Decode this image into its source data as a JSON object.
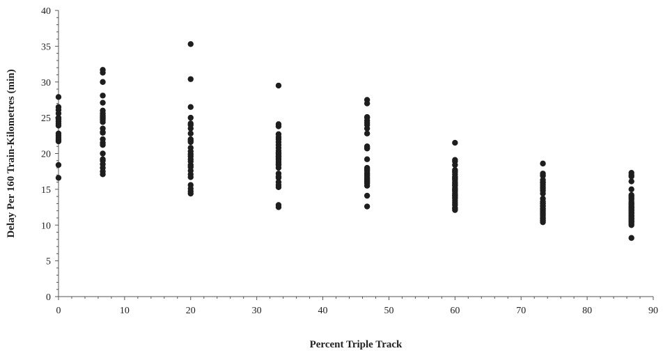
{
  "chart_data": {
    "type": "scatter",
    "title": "",
    "xlabel": "Percent Triple Track",
    "ylabel": "Delay Per 160 Train-Kilometres (min)",
    "xlim": [
      0,
      90
    ],
    "ylim": [
      0,
      40
    ],
    "x_ticks": [
      0,
      10,
      20,
      30,
      40,
      50,
      60,
      70,
      80,
      90
    ],
    "y_ticks": [
      0,
      5,
      10,
      15,
      20,
      25,
      30,
      35,
      40
    ],
    "grid": false,
    "legend": "none",
    "point_color": "#1e1e1e",
    "series": [
      {
        "x": [
          0,
          0,
          0,
          0,
          0,
          0,
          0,
          0,
          0,
          0,
          0,
          0,
          0,
          0,
          0,
          0,
          6.7,
          6.7,
          6.7,
          6.7,
          6.7,
          6.7,
          6.7,
          6.7,
          6.7,
          6.7,
          6.7,
          6.7,
          6.7,
          6.7,
          6.7,
          6.7,
          6.7,
          6.7,
          6.7,
          6.7,
          6.7,
          6.7,
          6.7,
          6.7,
          6.7,
          20,
          20,
          20,
          20,
          20,
          20,
          20,
          20,
          20,
          20,
          20,
          20,
          20,
          20,
          20,
          20,
          20,
          20,
          20,
          20,
          20,
          20,
          20,
          20,
          20,
          20,
          33.3,
          33.3,
          33.3,
          33.3,
          33.3,
          33.3,
          33.3,
          33.3,
          33.3,
          33.3,
          33.3,
          33.3,
          33.3,
          33.3,
          33.3,
          33.3,
          33.3,
          33.3,
          33.3,
          33.3,
          33.3,
          33.3,
          33.3,
          33.3,
          33.3,
          33.3,
          33.3,
          33.3,
          33.3,
          46.7,
          46.7,
          46.7,
          46.7,
          46.7,
          46.7,
          46.7,
          46.7,
          46.7,
          46.7,
          46.7,
          46.7,
          46.7,
          46.7,
          46.7,
          46.7,
          46.7,
          46.7,
          46.7,
          46.7,
          46.7,
          46.7,
          46.7,
          46.7,
          46.7,
          46.7,
          46.7,
          60,
          60,
          60,
          60,
          60,
          60,
          60,
          60,
          60,
          60,
          60,
          60,
          60,
          60,
          60,
          60,
          60,
          60,
          60,
          60,
          60,
          60,
          60,
          60,
          60,
          60,
          60,
          60,
          60,
          60,
          60,
          73.3,
          73.3,
          73.3,
          73.3,
          73.3,
          73.3,
          73.3,
          73.3,
          73.3,
          73.3,
          73.3,
          73.3,
          73.3,
          73.3,
          73.3,
          73.3,
          73.3,
          73.3,
          73.3,
          73.3,
          73.3,
          73.3,
          73.3,
          73.3,
          73.3,
          73.3,
          73.3,
          73.3,
          73.3,
          73.3,
          86.7,
          86.7,
          86.7,
          86.7,
          86.7,
          86.7,
          86.7,
          86.7,
          86.7,
          86.7,
          86.7,
          86.7,
          86.7,
          86.7,
          86.7,
          86.7,
          86.7,
          86.7,
          86.7,
          86.7,
          86.7,
          86.7,
          86.7,
          86.7,
          86.7,
          86.7,
          86.7,
          86.7,
          86.7,
          86.7,
          86.7,
          86.7,
          86.7,
          86.7
        ],
        "y": [
          27.9,
          26.1,
          25.6,
          25.0,
          24.8,
          24.2,
          23.9,
          22.8,
          22.5,
          22.2,
          21.9,
          21.7,
          18.4,
          16.6,
          24.5,
          26.5,
          31.7,
          31.3,
          30.0,
          28.1,
          27.1,
          26.0,
          25.6,
          25.1,
          24.7,
          24.4,
          23.5,
          23.0,
          22.0,
          21.5,
          21.2,
          20.0,
          19.2,
          19.0,
          18.5,
          18.0,
          17.5,
          17.1,
          25.3,
          24.9,
          22.9,
          35.3,
          30.4,
          26.5,
          25.0,
          24.2,
          24.0,
          23.5,
          22.8,
          22.0,
          21.8,
          20.8,
          20.3,
          19.9,
          19.6,
          19.2,
          18.9,
          18.4,
          18.1,
          17.6,
          17.1,
          16.7,
          15.6,
          15.1,
          14.7,
          14.4,
          21.6,
          29.5,
          24.1,
          23.8,
          22.7,
          22.0,
          21.6,
          21.2,
          20.8,
          20.4,
          20.1,
          19.8,
          19.5,
          19.3,
          19.1,
          18.8,
          18.4,
          18.0,
          17.2,
          16.6,
          16.0,
          15.6,
          15.3,
          12.8,
          12.5,
          22.3,
          20.0,
          19.6,
          18.5,
          16.8,
          27.5,
          27.0,
          25.1,
          24.6,
          24.0,
          23.5,
          22.8,
          21.0,
          20.8,
          19.2,
          18.0,
          17.6,
          17.3,
          17.1,
          16.9,
          16.6,
          16.2,
          15.8,
          15.5,
          14.1,
          12.6,
          25.0,
          24.3,
          20.7,
          17.8,
          16.4,
          16.0,
          21.5,
          19.1,
          18.9,
          18.4,
          17.7,
          17.4,
          17.1,
          16.8,
          16.6,
          16.3,
          16.0,
          15.8,
          15.5,
          15.2,
          15.0,
          14.7,
          14.4,
          14.1,
          13.7,
          13.4,
          13.1,
          12.8,
          12.4,
          12.1,
          17.5,
          16.5,
          15.6,
          14.9,
          14.2,
          13.9,
          12.3,
          18.6,
          17.2,
          16.9,
          16.3,
          16.0,
          15.6,
          15.3,
          14.8,
          14.4,
          13.7,
          13.3,
          13.0,
          12.6,
          12.3,
          12.0,
          11.8,
          11.6,
          11.3,
          11.0,
          10.7,
          10.4,
          17.0,
          15.9,
          15.1,
          13.1,
          12.7,
          12.2,
          11.5,
          10.9,
          10.6,
          17.3,
          17.0,
          16.1,
          15.0,
          14.2,
          14.0,
          13.6,
          13.3,
          13.0,
          12.8,
          12.6,
          12.4,
          12.2,
          12.0,
          11.8,
          11.6,
          11.4,
          11.2,
          11.0,
          10.8,
          10.6,
          10.4,
          10.2,
          10.0,
          8.2,
          13.8,
          13.1,
          12.5,
          12.1,
          11.7,
          11.3,
          10.9,
          10.5,
          16.8
        ]
      }
    ]
  }
}
